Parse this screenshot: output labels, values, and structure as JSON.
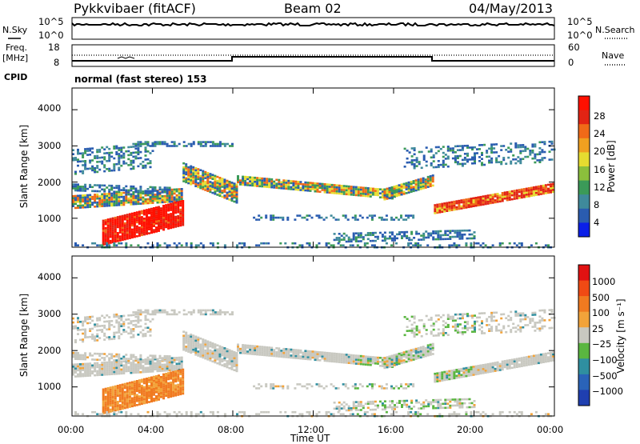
{
  "header": {
    "radar": "Pykkvibaer (fitACF)",
    "beam": "Beam 02",
    "date": "04/May/2013"
  },
  "panels": {
    "nsky": {
      "left_label": "N.Sky",
      "right_label": "N.Search",
      "left_ticks": [
        "10^5",
        "10^0"
      ],
      "right_ticks": [
        "10^5",
        "10^0"
      ]
    },
    "freq": {
      "left_label_1": "Freq.",
      "left_label_2": "[MHz]",
      "right_label": "Nave",
      "left_ticks": [
        "18",
        "8"
      ],
      "right_ticks": [
        "60",
        "0"
      ]
    },
    "cpid": {
      "label": "CPID",
      "mode": "normal (fast stereo) 153"
    }
  },
  "chart_data": [
    {
      "type": "heatmap",
      "name_ref": "power",
      "ylabel": "Slant Range [km]",
      "xlabel": "",
      "yticks": [
        "4000",
        "3000",
        "2000",
        "1000"
      ],
      "xticks": [],
      "ylim": [
        200,
        4600
      ],
      "xlim": [
        0,
        24
      ],
      "colorbar": {
        "label": "Power [dB]",
        "ticks": [
          "28",
          "24",
          "20",
          "16",
          "12",
          "8",
          "4"
        ],
        "colors": [
          "#e8e8e8",
          "#0b1fe8",
          "#2a5cb0",
          "#3f8a9b",
          "#3b9a58",
          "#8bbf3c",
          "#e6dc30",
          "#f0a020",
          "#f06a18",
          "#e22414",
          "#ff1000"
        ]
      }
    },
    {
      "type": "heatmap",
      "name_ref": "velocity",
      "ylabel": "Slant Range [km]",
      "xlabel": "Time UT",
      "yticks": [
        "4000",
        "3000",
        "2000",
        "1000"
      ],
      "xticks": [
        "00:00",
        "04:00",
        "08:00",
        "12:00",
        "16:00",
        "20:00",
        "00:00"
      ],
      "ylim": [
        200,
        4600
      ],
      "xlim": [
        0,
        24
      ],
      "colorbar": {
        "label": "Velocity [m s⁻¹]",
        "ticks": [
          "1000",
          "500",
          "100",
          "25",
          "−25",
          "−100",
          "−500",
          "−1000"
        ],
        "colors": [
          "#1f3fb0",
          "#2a63b8",
          "#2f8fa0",
          "#5ab640",
          "#c8c8c0",
          "#f2a33a",
          "#f07a20",
          "#f04a14",
          "#e11212"
        ]
      }
    }
  ]
}
